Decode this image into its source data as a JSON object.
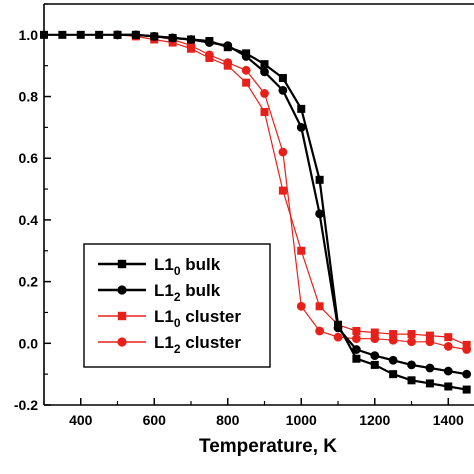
{
  "chart_data": {
    "type": "line",
    "xlabel": "Temperature, K",
    "ylabel": "",
    "xlim": [
      300,
      1470
    ],
    "ylim": [
      -0.2,
      1.1
    ],
    "xticks": [
      400,
      600,
      800,
      1000,
      1200,
      1400
    ],
    "yticks": [
      -0.2,
      0.0,
      0.2,
      0.4,
      0.6,
      0.8,
      1.0
    ],
    "xtick_labels": [
      "400",
      "600",
      "800",
      "1000",
      "1200",
      "1400"
    ],
    "ytick_labels": [
      "-0.2",
      "0.0",
      "0.2",
      "0.4",
      "0.6",
      "0.8",
      "1.0"
    ],
    "grid": false,
    "legend_position": "bottom-left",
    "series": [
      {
        "name": "L1_0 bulk",
        "legend_main": "L1",
        "legend_sub": "0",
        "legend_rest": " bulk",
        "color": "#000000",
        "marker": "square",
        "line_width": 2.2,
        "x": [
          300,
          350,
          400,
          450,
          500,
          550,
          600,
          650,
          700,
          750,
          800,
          850,
          900,
          950,
          1000,
          1050,
          1100,
          1150,
          1200,
          1250,
          1300,
          1350,
          1400,
          1450
        ],
        "y": [
          1.0,
          1.0,
          1.0,
          1.0,
          1.0,
          1.0,
          0.995,
          0.99,
          0.985,
          0.98,
          0.96,
          0.94,
          0.905,
          0.86,
          0.76,
          0.53,
          0.06,
          -0.05,
          -0.07,
          -0.1,
          -0.12,
          -0.13,
          -0.14,
          -0.15
        ]
      },
      {
        "name": "L1_2 bulk",
        "legend_main": "L1",
        "legend_sub": "2",
        "legend_rest": " bulk",
        "color": "#000000",
        "marker": "circle",
        "line_width": 2.2,
        "x": [
          500,
          550,
          600,
          650,
          700,
          750,
          800,
          850,
          900,
          950,
          1000,
          1050,
          1100,
          1150,
          1200,
          1250,
          1300,
          1350,
          1400,
          1450
        ],
        "y": [
          1.0,
          1.0,
          0.995,
          0.99,
          0.985,
          0.975,
          0.965,
          0.93,
          0.88,
          0.82,
          0.7,
          0.42,
          0.05,
          -0.02,
          -0.04,
          -0.055,
          -0.07,
          -0.08,
          -0.09,
          -0.1
        ]
      },
      {
        "name": "L1_0 cluster",
        "legend_main": "L1",
        "legend_sub": "0",
        "legend_rest": " cluster",
        "color": "#e8201a",
        "marker": "square",
        "line_width": 1.2,
        "x": [
          500,
          550,
          600,
          650,
          700,
          750,
          800,
          850,
          900,
          950,
          1000,
          1050,
          1100,
          1150,
          1200,
          1250,
          1300,
          1350,
          1400,
          1450
        ],
        "y": [
          1.0,
          0.995,
          0.985,
          0.975,
          0.955,
          0.925,
          0.9,
          0.845,
          0.75,
          0.495,
          0.3,
          0.12,
          0.06,
          0.04,
          0.035,
          0.03,
          0.03,
          0.025,
          0.02,
          -0.005
        ]
      },
      {
        "name": "L1_2 cluster",
        "legend_main": "L1",
        "legend_sub": "2",
        "legend_rest": " cluster",
        "color": "#e8201a",
        "marker": "circle",
        "line_width": 1.2,
        "x": [
          500,
          550,
          600,
          650,
          700,
          750,
          800,
          850,
          900,
          950,
          1000,
          1050,
          1100,
          1150,
          1200,
          1250,
          1300,
          1350,
          1400,
          1450
        ],
        "y": [
          1.0,
          1.0,
          0.995,
          0.985,
          0.965,
          0.935,
          0.91,
          0.885,
          0.81,
          0.62,
          0.12,
          0.04,
          0.02,
          0.015,
          0.015,
          0.01,
          0.005,
          0.005,
          -0.01,
          -0.02
        ]
      }
    ]
  }
}
